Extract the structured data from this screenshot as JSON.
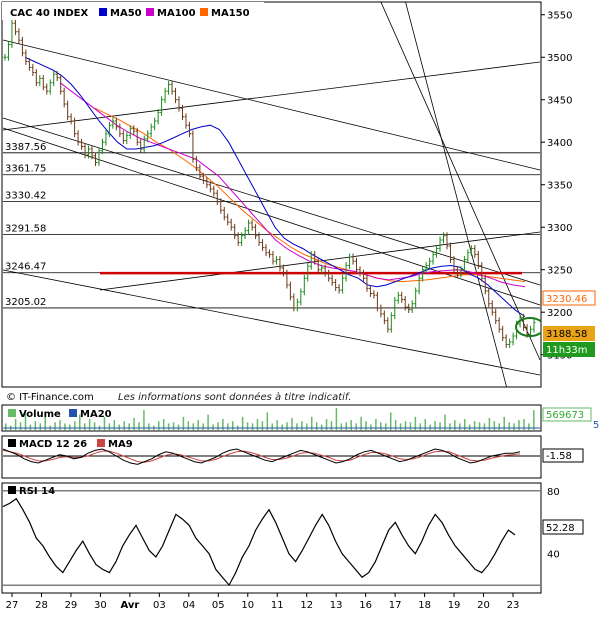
{
  "chart_data": {
    "type": "line",
    "title": "CAC 40 INDEX",
    "legend": [
      {
        "name": "MA50",
        "color": "#0000cc"
      },
      {
        "name": "MA100",
        "color": "#cc00cc"
      },
      {
        "name": "MA150",
        "color": "#ff6600"
      }
    ],
    "y_ticks": [
      3150,
      3200,
      3250,
      3300,
      3350,
      3400,
      3450,
      3500,
      3550
    ],
    "y_range": [
      3112,
      3565
    ],
    "x_labels": [
      "27",
      "28",
      "29",
      "30",
      "Avr",
      "03",
      "04",
      "05",
      "10",
      "11",
      "12",
      "13",
      "16",
      "17",
      "18",
      "19",
      "20",
      "23"
    ],
    "level_lines": [
      {
        "label": "3387.56",
        "value": 3387.56
      },
      {
        "label": "3361.75",
        "value": 3361.75
      },
      {
        "label": "3330.42",
        "value": 3330.42
      },
      {
        "label": "3291.58",
        "value": 3291.58
      },
      {
        "label": "3246.47",
        "value": 3246.47
      },
      {
        "label": "3205.02",
        "value": 3205.02
      }
    ],
    "resistance_line": {
      "value": 3246,
      "color": "#cc0000"
    },
    "price_series": [
      3500,
      3515,
      3540,
      3530,
      3520,
      3505,
      3495,
      3488,
      3482,
      3470,
      3475,
      3465,
      3460,
      3470,
      3480,
      3476,
      3460,
      3445,
      3430,
      3425,
      3410,
      3400,
      3395,
      3385,
      3392,
      3384,
      3376,
      3390,
      3400,
      3410,
      3420,
      3425,
      3418,
      3410,
      3402,
      3408,
      3416,
      3413,
      3400,
      3392,
      3404,
      3410,
      3418,
      3425,
      3435,
      3450,
      3460,
      3468,
      3460,
      3450,
      3440,
      3430,
      3420,
      3410,
      3380,
      3370,
      3360,
      3355,
      3350,
      3345,
      3340,
      3330,
      3320,
      3312,
      3306,
      3300,
      3290,
      3282,
      3290,
      3296,
      3305,
      3300,
      3290,
      3282,
      3276,
      3270,
      3268,
      3260,
      3262,
      3252,
      3246,
      3232,
      3218,
      3205,
      3212,
      3224,
      3240,
      3254,
      3268,
      3260,
      3250,
      3252,
      3246,
      3240,
      3235,
      3229,
      3226,
      3240,
      3255,
      3265,
      3260,
      3250,
      3246,
      3240,
      3228,
      3222,
      3220,
      3205,
      3198,
      3190,
      3180,
      3196,
      3214,
      3220,
      3215,
      3206,
      3203,
      3210,
      3225,
      3240,
      3250,
      3255,
      3260,
      3268,
      3275,
      3285,
      3290,
      3278,
      3262,
      3250,
      3245,
      3250,
      3262,
      3270,
      3275,
      3268,
      3255,
      3240,
      3225,
      3210,
      3200,
      3190,
      3180,
      3170,
      3162,
      3165,
      3172,
      3186,
      3194,
      3182,
      3174,
      3180,
      3188
    ],
    "ma50": [
      3500,
      3495,
      3490,
      3485,
      3478,
      3468,
      3455,
      3440,
      3425,
      3412,
      3400,
      3392,
      3392,
      3394,
      3396,
      3400,
      3405,
      3410,
      3415,
      3418,
      3420,
      3415,
      3400,
      3380,
      3360,
      3340,
      3320,
      3300,
      3287,
      3280,
      3275,
      3268,
      3262,
      3256,
      3250,
      3244,
      3240,
      3232,
      3230,
      3232,
      3236,
      3240,
      3244,
      3248,
      3252,
      3254,
      3255,
      3253,
      3245,
      3240,
      3232,
      3222,
      3212,
      3202,
      3195
    ],
    "ma100": [
      3470,
      3460,
      3450,
      3440,
      3430,
      3420,
      3412,
      3405,
      3400,
      3395,
      3390,
      3385,
      3380,
      3370,
      3360,
      3345,
      3330,
      3315,
      3300,
      3285,
      3275,
      3267,
      3260,
      3255,
      3252,
      3250,
      3248,
      3244,
      3240,
      3238,
      3240,
      3242,
      3246,
      3248,
      3249,
      3250,
      3248,
      3244,
      3240,
      3235,
      3232,
      3230
    ],
    "ma150": [
      3440,
      3433,
      3426,
      3418,
      3410,
      3400,
      3392,
      3382,
      3372,
      3360,
      3348,
      3334,
      3320,
      3308,
      3296,
      3286,
      3276,
      3268,
      3262,
      3256,
      3252,
      3248,
      3244,
      3240,
      3237,
      3236,
      3237,
      3238,
      3240,
      3242,
      3244,
      3244,
      3242,
      3240,
      3238,
      3236
    ],
    "last_ma": {
      "label": "3230.46",
      "value": 3230.46
    },
    "last_price": {
      "label": "3188.58",
      "value": 3188.58
    },
    "time_label": "11h33m",
    "copyright": "© IT-Finance.com",
    "disclaimer": "Les informations sont données à titre indicatif.",
    "volume_panel": {
      "legend": [
        {
          "name": "Volume",
          "color": "#66bb66"
        },
        {
          "name": "MA20",
          "color": "#2255aa"
        }
      ],
      "value_label": "569673",
      "tail_label": "5",
      "bars": [
        0.3,
        0.2,
        0.5,
        0.35,
        0.8,
        0.25,
        0.4,
        0.3,
        0.6,
        0.2,
        0.35,
        0.45,
        0.3,
        0.25,
        0.4,
        0.7,
        0.3,
        0.5,
        0.35,
        0.2,
        0.6,
        0.3,
        0.45,
        0.25,
        0.4,
        0.3,
        0.55,
        0.35,
        0.9,
        0.3,
        0.2,
        0.4,
        0.5,
        0.3,
        0.35,
        0.25,
        0.6,
        0.4,
        0.3,
        0.45,
        0.3,
        0.7,
        0.25,
        0.35,
        0.5,
        0.3,
        0.4,
        0.2,
        0.6,
        0.35,
        0.3,
        0.5,
        0.4,
        0.8,
        0.3,
        0.45,
        0.25,
        0.35,
        0.55,
        0.3,
        0.4,
        0.3,
        0.6,
        0.35,
        0.25,
        0.5,
        0.4,
        1.0,
        0.3,
        0.35,
        0.45,
        0.3,
        0.6,
        0.4,
        0.25,
        0.5,
        0.35,
        0.3,
        0.8,
        0.45,
        0.3,
        0.4,
        0.35,
        0.6,
        0.3,
        0.5,
        0.25,
        0.4,
        0.35,
        0.7,
        0.3,
        0.45,
        0.3,
        0.5,
        0.25,
        0.4,
        0.35,
        0.3,
        0.55,
        0.4,
        0.3,
        0.6,
        0.35,
        0.3,
        0.45,
        0.5,
        0.3,
        0.9
      ]
    },
    "macd_panel": {
      "legend": [
        {
          "name": "MACD 12 26",
          "color": "#000000"
        },
        {
          "name": "MA9",
          "color": "#cc4444"
        }
      ],
      "value_label": "-1.58",
      "range": [
        -1,
        1
      ],
      "macd": [
        0.5,
        0.3,
        0.1,
        -0.2,
        -0.4,
        -0.5,
        -0.3,
        -0.1,
        0.1,
        0.0,
        -0.2,
        -0.1,
        0.2,
        0.4,
        0.5,
        0.3,
        0.0,
        -0.3,
        -0.5,
        -0.6,
        -0.4,
        -0.2,
        0.1,
        0.3,
        0.2,
        0.0,
        -0.2,
        -0.4,
        -0.5,
        -0.3,
        -0.1,
        0.2,
        0.4,
        0.5,
        0.3,
        0.1,
        -0.1,
        -0.3,
        -0.4,
        -0.2,
        0.0,
        0.2,
        0.4,
        0.3,
        0.1,
        -0.1,
        -0.3,
        -0.5,
        -0.4,
        -0.2,
        0.1,
        0.3,
        0.4,
        0.2,
        0.0,
        -0.2,
        -0.4,
        -0.3,
        -0.1,
        0.1,
        0.3,
        0.5,
        0.4,
        0.2,
        -0.1,
        -0.3,
        -0.5,
        -0.4,
        -0.2,
        0.0,
        0.1,
        0.2,
        0.2,
        0.3
      ],
      "ma9": [
        0.4,
        0.3,
        0.2,
        0.0,
        -0.2,
        -0.35,
        -0.35,
        -0.25,
        -0.1,
        -0.05,
        -0.1,
        -0.1,
        0.0,
        0.2,
        0.35,
        0.35,
        0.2,
        0.0,
        -0.2,
        -0.4,
        -0.45,
        -0.35,
        -0.15,
        0.05,
        0.15,
        0.1,
        -0.05,
        -0.2,
        -0.35,
        -0.35,
        -0.25,
        -0.05,
        0.15,
        0.3,
        0.35,
        0.25,
        0.1,
        -0.1,
        -0.25,
        -0.25,
        -0.15,
        0.0,
        0.2,
        0.25,
        0.2,
        0.05,
        -0.1,
        -0.3,
        -0.35,
        -0.3,
        -0.1,
        0.1,
        0.25,
        0.25,
        0.15,
        0.0,
        -0.2,
        -0.25,
        -0.2,
        -0.05,
        0.15,
        0.3,
        0.35,
        0.3,
        0.1,
        -0.1,
        -0.3,
        -0.35,
        -0.3,
        -0.15,
        -0.05,
        0.05,
        0.1,
        0.15
      ]
    },
    "rsi_panel": {
      "legend": [
        {
          "name": "RSI 14",
          "color": "#000000"
        }
      ],
      "y_ticks": [
        80,
        40
      ],
      "value_label": "52.28",
      "range": [
        15,
        85
      ],
      "values": [
        70,
        72,
        75,
        68,
        60,
        50,
        45,
        38,
        32,
        28,
        35,
        42,
        48,
        40,
        33,
        30,
        28,
        35,
        45,
        52,
        58,
        50,
        42,
        38,
        45,
        55,
        65,
        62,
        58,
        50,
        45,
        40,
        30,
        25,
        20,
        28,
        38,
        45,
        55,
        62,
        68,
        60,
        50,
        40,
        35,
        42,
        50,
        58,
        65,
        58,
        48,
        40,
        35,
        30,
        25,
        28,
        35,
        45,
        55,
        60,
        52,
        45,
        40,
        48,
        58,
        65,
        60,
        52,
        45,
        40,
        35,
        30,
        28,
        33,
        40,
        48,
        55,
        52
      ]
    }
  }
}
